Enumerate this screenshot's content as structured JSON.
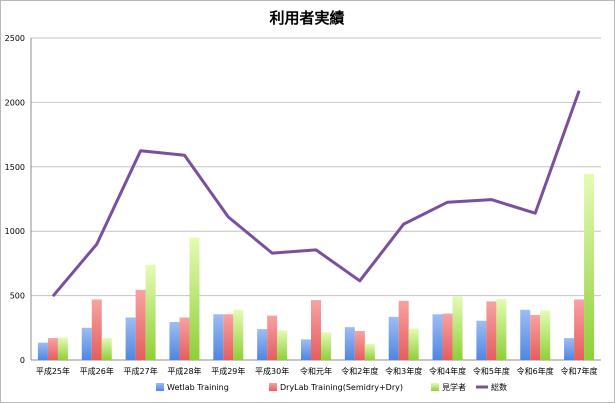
{
  "chart_data": {
    "type": "bar",
    "title": "利用者実績",
    "xlabel": "",
    "ylabel": "",
    "ylim": [
      0,
      2500
    ],
    "yticks": [
      0,
      500,
      1000,
      1500,
      2000,
      2500
    ],
    "grid": true,
    "legend": "bottom",
    "categories": [
      "平成25年",
      "平成26年",
      "平成27年",
      "平成28年",
      "平成29年",
      "平成30年",
      "令和元年",
      "令和2年度",
      "令和3年度",
      "令和4年度",
      "令和5年度",
      "令和6年度",
      "令和7年度"
    ],
    "series": [
      {
        "name": "Wetlab Training",
        "type": "bar",
        "color": "#6b9be8",
        "values": [
          135,
          250,
          330,
          295,
          355,
          240,
          160,
          255,
          335,
          355,
          305,
          390,
          170
        ]
      },
      {
        "name": "DryLab Training(Semidry+Dry)",
        "type": "bar",
        "color": "#ee7070",
        "values": [
          170,
          470,
          545,
          330,
          355,
          345,
          465,
          225,
          460,
          360,
          455,
          350,
          470
        ]
      },
      {
        "name": "見学者",
        "type": "bar",
        "color": "#bfe870",
        "values": [
          175,
          170,
          740,
          950,
          390,
          230,
          215,
          125,
          245,
          495,
          475,
          385,
          1445
        ]
      },
      {
        "name": "総数",
        "type": "line",
        "color": "#7a4f9e",
        "values": [
          495,
          900,
          1625,
          1590,
          1110,
          830,
          855,
          615,
          1055,
          1225,
          1245,
          1140,
          2090
        ]
      }
    ]
  }
}
